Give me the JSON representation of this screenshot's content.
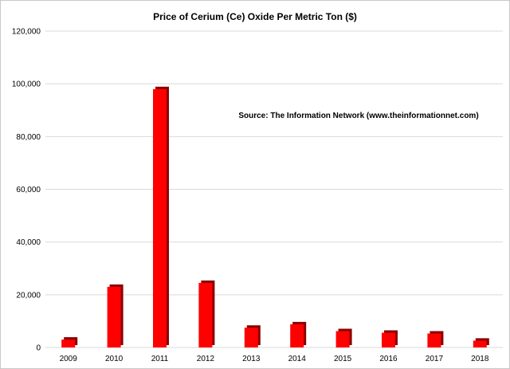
{
  "chart_data": {
    "type": "bar",
    "title": "Price of Cerium (Ce)  Oxide Per Metric Ton ($)",
    "annotation": "Source: The Information Network (www.theinformationnet.com)",
    "categories": [
      "2009",
      "2010",
      "2011",
      "2012",
      "2013",
      "2014",
      "2015",
      "2016",
      "2017",
      "2018"
    ],
    "values": [
      3000,
      23000,
      98000,
      24500,
      7500,
      8800,
      6200,
      5600,
      5300,
      2600
    ],
    "ylim": [
      0,
      120000
    ],
    "yticks": [
      0,
      20000,
      40000,
      60000,
      80000,
      100000,
      120000
    ],
    "ytick_labels": [
      "0",
      "20,000",
      "40,000",
      "60,000",
      "80,000",
      "100,000",
      "120,000"
    ],
    "xlabel": "",
    "ylabel": "",
    "grid": true,
    "bar_color": "#ff0000",
    "bar_shadow_color": "#8b0000"
  }
}
